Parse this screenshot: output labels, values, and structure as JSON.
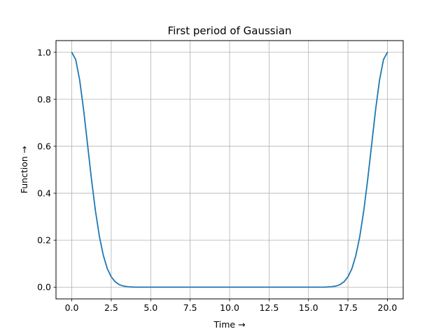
{
  "chart_data": {
    "type": "line",
    "title": "First period of Gaussian",
    "xlabel": "Time →",
    "ylabel": "Function →",
    "xlim": [
      -1,
      21
    ],
    "ylim": [
      -0.05,
      1.05
    ],
    "x_ticks": [
      0.0,
      2.5,
      5.0,
      7.5,
      10.0,
      12.5,
      15.0,
      17.5,
      20.0
    ],
    "x_tick_labels": [
      "0.0",
      "2.5",
      "5.0",
      "7.5",
      "10.0",
      "12.5",
      "15.0",
      "17.5",
      "20.0"
    ],
    "y_ticks": [
      0.0,
      0.2,
      0.4,
      0.6,
      0.8,
      1.0
    ],
    "y_tick_labels": [
      "0.0",
      "0.2",
      "0.4",
      "0.6",
      "0.8",
      "1.0"
    ],
    "grid": true,
    "series": [
      {
        "color": "#1f77b4",
        "x": [
          0,
          0.25,
          0.5,
          0.75,
          1.0,
          1.25,
          1.5,
          1.75,
          2.0,
          2.25,
          2.5,
          2.75,
          3.0,
          3.25,
          3.5,
          3.75,
          4.0,
          4.5,
          5.0,
          6.0,
          7.0,
          8.0,
          9.0,
          10.0,
          11.0,
          12.0,
          13.0,
          14.0,
          15.0,
          15.5,
          16.0,
          16.25,
          16.5,
          16.75,
          17.0,
          17.25,
          17.5,
          17.75,
          18.0,
          18.25,
          18.5,
          18.75,
          19.0,
          19.25,
          19.5,
          19.75,
          20.0
        ],
        "y": [
          1.0,
          0.969,
          0.882,
          0.755,
          0.607,
          0.458,
          0.325,
          0.216,
          0.135,
          0.079,
          0.044,
          0.023,
          0.011,
          0.005,
          0.002,
          0.001,
          0.0,
          0.0,
          0.0,
          0.0,
          0.0,
          0.0,
          0.0,
          0.0,
          0.0,
          0.0,
          0.0,
          0.0,
          0.0,
          0.0,
          0.0,
          0.001,
          0.002,
          0.005,
          0.011,
          0.023,
          0.044,
          0.079,
          0.135,
          0.216,
          0.325,
          0.458,
          0.607,
          0.755,
          0.882,
          0.969,
          1.0
        ]
      }
    ]
  }
}
